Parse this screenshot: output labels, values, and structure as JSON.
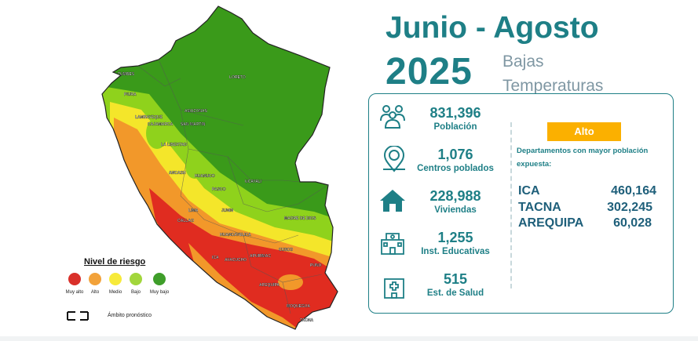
{
  "header": {
    "period": "Junio - Agosto",
    "year": "2025",
    "subtitle_line1": "Bajas",
    "subtitle_line2": "Temperaturas"
  },
  "map": {
    "labels": [
      {
        "name": "TUMBES",
        "text": "TUMBES"
      },
      {
        "name": "PIURA",
        "text": "PIURA"
      },
      {
        "name": "LAMBAYEQUE",
        "text": "LAMBAYEQUE"
      },
      {
        "name": "AMAZONAS",
        "text": "AMAZONAS"
      },
      {
        "name": "CAJAMARCA",
        "text": "CAJAMARCA"
      },
      {
        "name": "SAN-MARTIN",
        "text": "SAN MARTIN"
      },
      {
        "name": "LA-LIBERTAD",
        "text": "LA LIBERTAD"
      },
      {
        "name": "LORETO",
        "text": "LORETO"
      },
      {
        "name": "ANCASH",
        "text": "ANCASH"
      },
      {
        "name": "HUANUCO",
        "text": "HUANUCO"
      },
      {
        "name": "UCAYALI",
        "text": "UCAYALI"
      },
      {
        "name": "PASCO",
        "text": "PASCO"
      },
      {
        "name": "JUNIN",
        "text": "JUNIN"
      },
      {
        "name": "LIMA",
        "text": "LIMA"
      },
      {
        "name": "CALLAO",
        "text": "CALLAO"
      },
      {
        "name": "MADRE-DE-DIOS",
        "text": "MADRE DE DIOS"
      },
      {
        "name": "HUANCAVELICA",
        "text": "HUANCAVELICA"
      },
      {
        "name": "ICA",
        "text": "ICA"
      },
      {
        "name": "AYACUCHO",
        "text": "AYACUCHO"
      },
      {
        "name": "APURIMAC",
        "text": "APURIMAC"
      },
      {
        "name": "CUSCO",
        "text": "CUSCO"
      },
      {
        "name": "PUNO",
        "text": "PUNO"
      },
      {
        "name": "AREQUIPA",
        "text": "AREQUIPA"
      },
      {
        "name": "MOQUEGUA",
        "text": "MOQUEGUA"
      },
      {
        "name": "TACNA",
        "text": "TACNA"
      }
    ],
    "colors": {
      "muy_bajo": "#3a9a1a",
      "bajo": "#8fd21c",
      "medio": "#f4e62a",
      "alto": "#f2982a",
      "muy_alto": "#e02c20",
      "sea": "#ffffff",
      "border": "#222222"
    }
  },
  "legend": {
    "title": "Nivel de riesgo",
    "items": [
      {
        "label": "Muy alto",
        "color": "#d9302a"
      },
      {
        "label": "Alto",
        "color": "#f2a23a"
      },
      {
        "label": "Medio",
        "color": "#f7ea3a"
      },
      {
        "label": "Bajo",
        "color": "#a2d63c"
      },
      {
        "label": "Muy bajo",
        "color": "#3f9e2a"
      }
    ],
    "ambito_label": "Ámbito pronóstico"
  },
  "stats": [
    {
      "icon": "population-icon",
      "value": "831,396",
      "label": "Población"
    },
    {
      "icon": "populated-centers-icon",
      "value": "1,076",
      "label": "Centros poblados"
    },
    {
      "icon": "house-icon",
      "value": "228,988",
      "label": "Viviendas"
    },
    {
      "icon": "school-icon",
      "value": "1,255",
      "label": "Inst. Educativas"
    },
    {
      "icon": "hospital-icon",
      "value": "515",
      "label": "Est. de Salud"
    }
  ],
  "exposure": {
    "badge": "Alto",
    "note": "Departamentos con mayor población expuesta:",
    "departments": [
      {
        "name": "ICA",
        "value": "460,164"
      },
      {
        "name": "TACNA",
        "value": "302,245"
      },
      {
        "name": "AREQUIPA",
        "value": "60,028"
      }
    ]
  },
  "theme": {
    "accent": "#1e7f86",
    "badge": "#fbb000",
    "subtitle": "#7f97a3"
  }
}
